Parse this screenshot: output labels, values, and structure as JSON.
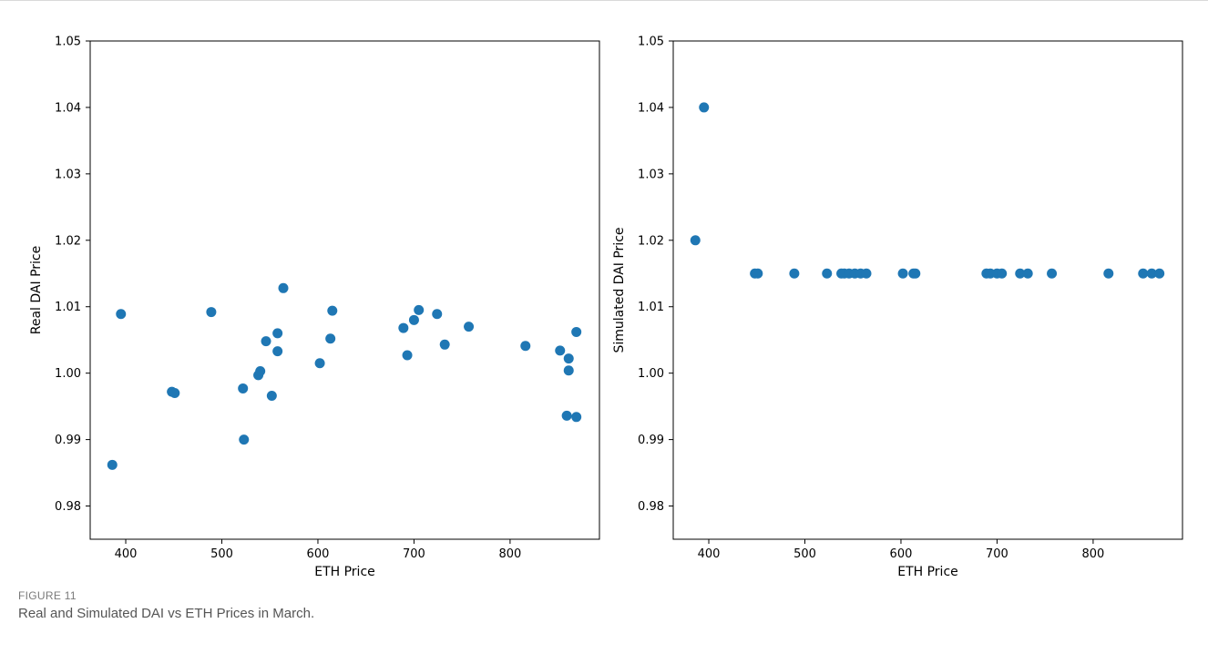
{
  "caption": {
    "label": "FIGURE 11",
    "text": "Real and Simulated DAI vs ETH Prices in March."
  },
  "colors": {
    "marker": "#1f77b4"
  },
  "chart_data": [
    {
      "type": "scatter",
      "title": "",
      "xlabel": "ETH Price",
      "ylabel": "Real DAI Price",
      "xlim": [
        363,
        893
      ],
      "ylim": [
        0.975,
        1.05
      ],
      "xticks": [
        400,
        500,
        600,
        700,
        800
      ],
      "xtick_labels": [
        "400",
        "500",
        "600",
        "700",
        "800"
      ],
      "yticks": [
        0.98,
        0.99,
        1.0,
        1.01,
        1.02,
        1.03,
        1.04,
        1.05
      ],
      "ytick_labels": [
        "0.98",
        "0.99",
        "1.00",
        "1.01",
        "1.02",
        "1.03",
        "1.04",
        "1.05"
      ],
      "grid": false,
      "points": [
        {
          "x": 386,
          "y": 0.9862
        },
        {
          "x": 395,
          "y": 1.0089
        },
        {
          "x": 448,
          "y": 0.9972
        },
        {
          "x": 451,
          "y": 0.997
        },
        {
          "x": 489,
          "y": 1.0092
        },
        {
          "x": 522,
          "y": 0.9977
        },
        {
          "x": 523,
          "y": 0.99
        },
        {
          "x": 538,
          "y": 0.9997
        },
        {
          "x": 540,
          "y": 1.0003
        },
        {
          "x": 546,
          "y": 1.0048
        },
        {
          "x": 552,
          "y": 0.9966
        },
        {
          "x": 558,
          "y": 1.006
        },
        {
          "x": 558,
          "y": 1.0033
        },
        {
          "x": 564,
          "y": 1.0128
        },
        {
          "x": 602,
          "y": 1.0015
        },
        {
          "x": 613,
          "y": 1.0052
        },
        {
          "x": 615,
          "y": 1.0094
        },
        {
          "x": 689,
          "y": 1.0068
        },
        {
          "x": 693,
          "y": 1.0027
        },
        {
          "x": 700,
          "y": 1.008
        },
        {
          "x": 705,
          "y": 1.0095
        },
        {
          "x": 724,
          "y": 1.0089
        },
        {
          "x": 732,
          "y": 1.0043
        },
        {
          "x": 757,
          "y": 1.007
        },
        {
          "x": 816,
          "y": 1.0041
        },
        {
          "x": 852,
          "y": 1.0034
        },
        {
          "x": 859,
          "y": 0.9936
        },
        {
          "x": 861,
          "y": 1.0022
        },
        {
          "x": 861,
          "y": 1.0004
        },
        {
          "x": 869,
          "y": 1.0062
        },
        {
          "x": 869,
          "y": 0.9934
        }
      ]
    },
    {
      "type": "scatter",
      "title": "",
      "xlabel": "ETH Price",
      "ylabel": "Simulated DAI Price",
      "xlim": [
        363,
        893
      ],
      "ylim": [
        0.975,
        1.05
      ],
      "xticks": [
        400,
        500,
        600,
        700,
        800
      ],
      "xtick_labels": [
        "400",
        "500",
        "600",
        "700",
        "800"
      ],
      "yticks": [
        0.98,
        0.99,
        1.0,
        1.01,
        1.02,
        1.03,
        1.04,
        1.05
      ],
      "ytick_labels": [
        "0.98",
        "0.99",
        "1.00",
        "1.01",
        "1.02",
        "1.03",
        "1.04",
        "1.05"
      ],
      "grid": false,
      "points": [
        {
          "x": 386,
          "y": 1.02
        },
        {
          "x": 395,
          "y": 1.04
        },
        {
          "x": 448,
          "y": 1.015
        },
        {
          "x": 451,
          "y": 1.015
        },
        {
          "x": 489,
          "y": 1.015
        },
        {
          "x": 523,
          "y": 1.015
        },
        {
          "x": 538,
          "y": 1.015
        },
        {
          "x": 541,
          "y": 1.015
        },
        {
          "x": 546,
          "y": 1.015
        },
        {
          "x": 552,
          "y": 1.015
        },
        {
          "x": 558,
          "y": 1.015
        },
        {
          "x": 564,
          "y": 1.015
        },
        {
          "x": 602,
          "y": 1.015
        },
        {
          "x": 613,
          "y": 1.015
        },
        {
          "x": 615,
          "y": 1.015
        },
        {
          "x": 689,
          "y": 1.015
        },
        {
          "x": 693,
          "y": 1.015
        },
        {
          "x": 700,
          "y": 1.015
        },
        {
          "x": 705,
          "y": 1.015
        },
        {
          "x": 724,
          "y": 1.015
        },
        {
          "x": 732,
          "y": 1.015
        },
        {
          "x": 757,
          "y": 1.015
        },
        {
          "x": 816,
          "y": 1.015
        },
        {
          "x": 852,
          "y": 1.015
        },
        {
          "x": 861,
          "y": 1.015
        },
        {
          "x": 869,
          "y": 1.015
        }
      ]
    }
  ]
}
